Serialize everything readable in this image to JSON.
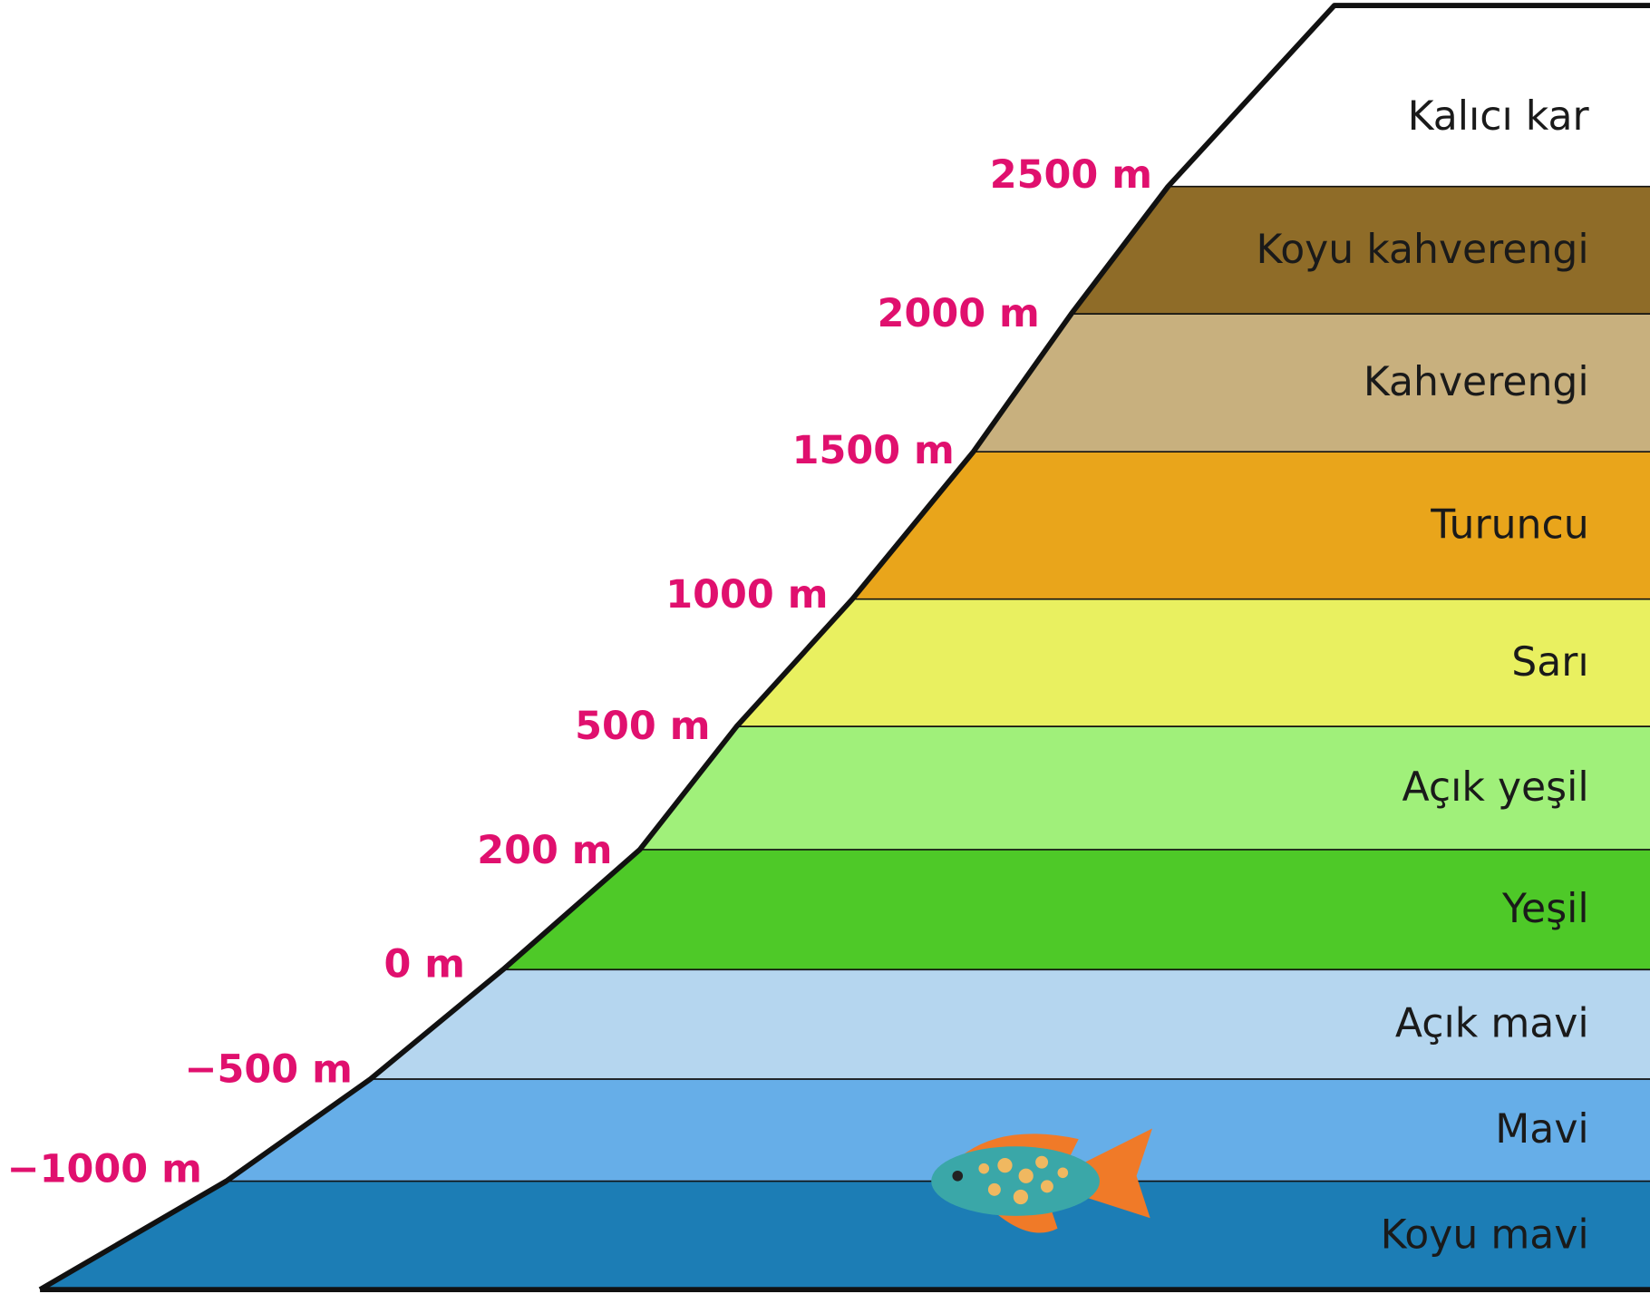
{
  "layers": [
    {
      "name": "Kalıcı kar",
      "color": "#ffffff"
    },
    {
      "name": "Koyu kahverengi",
      "color": "#8f6c28"
    },
    {
      "name": "Kahverengi",
      "color": "#c8b07e"
    },
    {
      "name": "Turuncu",
      "color": "#e9a51b"
    },
    {
      "name": "Sarı",
      "color": "#e9f060"
    },
    {
      "name": "Açık yeşil",
      "color": "#a0f07a"
    },
    {
      "name": "Yeşil",
      "color": "#4ec928"
    },
    {
      "name": "Açık mavi",
      "color": "#b5d6ef"
    },
    {
      "name": "Mavi",
      "color": "#66aee8"
    },
    {
      "name": "Koyu mavi",
      "color": "#1c7db5"
    }
  ],
  "elevations": [
    "2500 m",
    "2000 m",
    "1500 m",
    "1000 m",
    "500 m",
    "200 m",
    "0 m",
    "−500 m",
    "−1000 m"
  ]
}
